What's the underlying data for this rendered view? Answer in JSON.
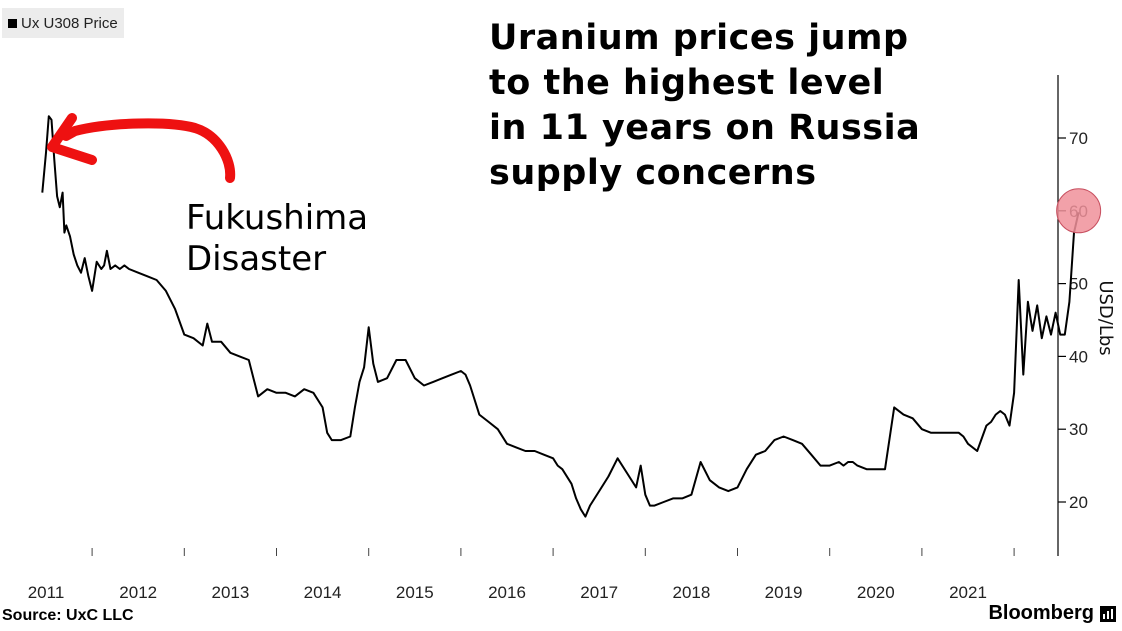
{
  "legend": {
    "label": "Ux U308 Price"
  },
  "headline": {
    "lines": [
      "Uranium prices jump",
      "to the highest level",
      "in 11 years on Russia",
      "supply concerns"
    ]
  },
  "annotation": {
    "lines": [
      "Fukushima",
      "Disaster"
    ],
    "arrow_color": "#ee1111",
    "arrow_icon": "red-arrow-icon"
  },
  "highlight": {
    "color": "#f0909a",
    "x": 2022.2,
    "y": 60
  },
  "footer": {
    "source": "Source:  UxC LLC",
    "brand": "Bloomberg"
  },
  "chart_data": {
    "type": "line",
    "title": "",
    "xlabel": "",
    "ylabel": "USD/Lbs",
    "xlim": [
      2010.95,
      2022.4
    ],
    "ylim": [
      12,
      79
    ],
    "x_ticks": [
      2011,
      2012,
      2013,
      2014,
      2015,
      2016,
      2017,
      2018,
      2019,
      2020,
      2021
    ],
    "x_tick_labels": [
      "2011",
      "2012",
      "2013",
      "2014",
      "2015",
      "2016",
      "2017",
      "2018",
      "2019",
      "2020",
      "2021"
    ],
    "y_ticks": [
      20,
      30,
      40,
      50,
      60,
      70
    ],
    "y_tick_labels": [
      "20",
      "30",
      "40",
      "50",
      "60",
      "70"
    ],
    "axis_position": "right",
    "grid": false,
    "legend_position": "top-left",
    "series": [
      {
        "name": "Ux U308 Price",
        "color": "#000000",
        "x": [
          2010.96,
          2011.0,
          2011.03,
          2011.06,
          2011.09,
          2011.12,
          2011.15,
          2011.18,
          2011.2,
          2011.22,
          2011.26,
          2011.3,
          2011.34,
          2011.38,
          2011.42,
          2011.46,
          2011.5,
          2011.55,
          2011.6,
          2011.63,
          2011.66,
          2011.7,
          2011.75,
          2011.8,
          2011.85,
          2011.9,
          2012.0,
          2012.1,
          2012.2,
          2012.3,
          2012.4,
          2012.5,
          2012.6,
          2012.7,
          2012.75,
          2012.8,
          2012.9,
          2013.0,
          2013.1,
          2013.2,
          2013.3,
          2013.4,
          2013.5,
          2013.6,
          2013.7,
          2013.8,
          2013.9,
          2014.0,
          2014.05,
          2014.1,
          2014.2,
          2014.3,
          2014.35,
          2014.4,
          2014.45,
          2014.5,
          2014.55,
          2014.6,
          2014.7,
          2014.8,
          2014.9,
          2015.0,
          2015.1,
          2015.2,
          2015.3,
          2015.4,
          2015.5,
          2015.55,
          2015.6,
          2015.7,
          2015.8,
          2015.9,
          2016.0,
          2016.1,
          2016.2,
          2016.3,
          2016.4,
          2016.5,
          2016.55,
          2016.6,
          2016.7,
          2016.75,
          2016.8,
          2016.85,
          2016.9,
          2017.0,
          2017.1,
          2017.2,
          2017.3,
          2017.4,
          2017.45,
          2017.5,
          2017.55,
          2017.6,
          2017.7,
          2017.8,
          2017.9,
          2018.0,
          2018.1,
          2018.2,
          2018.3,
          2018.4,
          2018.5,
          2018.6,
          2018.7,
          2018.8,
          2018.9,
          2019.0,
          2019.1,
          2019.2,
          2019.3,
          2019.4,
          2019.5,
          2019.6,
          2019.65,
          2019.7,
          2019.75,
          2019.8,
          2019.9,
          2020.0,
          2020.1,
          2020.2,
          2020.3,
          2020.4,
          2020.5,
          2020.6,
          2020.7,
          2020.8,
          2020.9,
          2020.95,
          2021.0,
          2021.1,
          2021.2,
          2021.25,
          2021.3,
          2021.35,
          2021.4,
          2021.45,
          2021.5,
          2021.55,
          2021.6,
          2021.65,
          2021.7,
          2021.75,
          2021.8,
          2021.85,
          2021.9,
          2021.95,
          2022.0,
          2022.05,
          2022.1,
          2022.15,
          2022.2
        ],
        "y": [
          62.5,
          68.0,
          73.0,
          72.5,
          67.0,
          62.0,
          60.5,
          62.5,
          57.0,
          58.0,
          56.5,
          54.0,
          52.5,
          51.5,
          53.5,
          51.0,
          49.0,
          53.0,
          52.0,
          52.5,
          54.5,
          52.0,
          52.5,
          52.0,
          52.5,
          52.0,
          51.5,
          51.0,
          50.5,
          49.0,
          46.5,
          43.0,
          42.5,
          41.5,
          44.5,
          42.0,
          42.0,
          40.5,
          40.0,
          39.5,
          34.5,
          35.5,
          35.0,
          35.0,
          34.5,
          35.5,
          35.0,
          33.0,
          29.5,
          28.5,
          28.5,
          29.0,
          33.0,
          36.5,
          38.5,
          44.0,
          39.0,
          36.5,
          37.0,
          39.5,
          39.5,
          37.0,
          36.0,
          36.5,
          37.0,
          37.5,
          38.0,
          37.5,
          36.0,
          32.0,
          31.0,
          30.0,
          28.0,
          27.5,
          27.0,
          27.0,
          26.5,
          26.0,
          25.0,
          24.5,
          22.5,
          20.5,
          19.0,
          18.0,
          19.5,
          21.5,
          23.5,
          26.0,
          24.0,
          22.0,
          25.0,
          21.0,
          19.5,
          19.5,
          20.0,
          20.5,
          20.5,
          21.0,
          25.5,
          23.0,
          22.0,
          21.5,
          22.0,
          24.5,
          26.5,
          27.0,
          28.5,
          29.0,
          28.5,
          28.0,
          26.5,
          25.0,
          25.0,
          25.5,
          25.0,
          25.5,
          25.5,
          25.0,
          24.5,
          24.5,
          24.5,
          33.0,
          32.0,
          31.5,
          30.0,
          29.5,
          29.5,
          29.5,
          29.5,
          29.0,
          28.0,
          27.0,
          30.5,
          31.0,
          32.0,
          32.5,
          32.0,
          30.5,
          35.0,
          50.5,
          37.5,
          47.5,
          43.5,
          47.0,
          42.5,
          45.5,
          43.0,
          46.0,
          43.0,
          43.0,
          47.5,
          57.0,
          59.8
        ]
      }
    ]
  }
}
